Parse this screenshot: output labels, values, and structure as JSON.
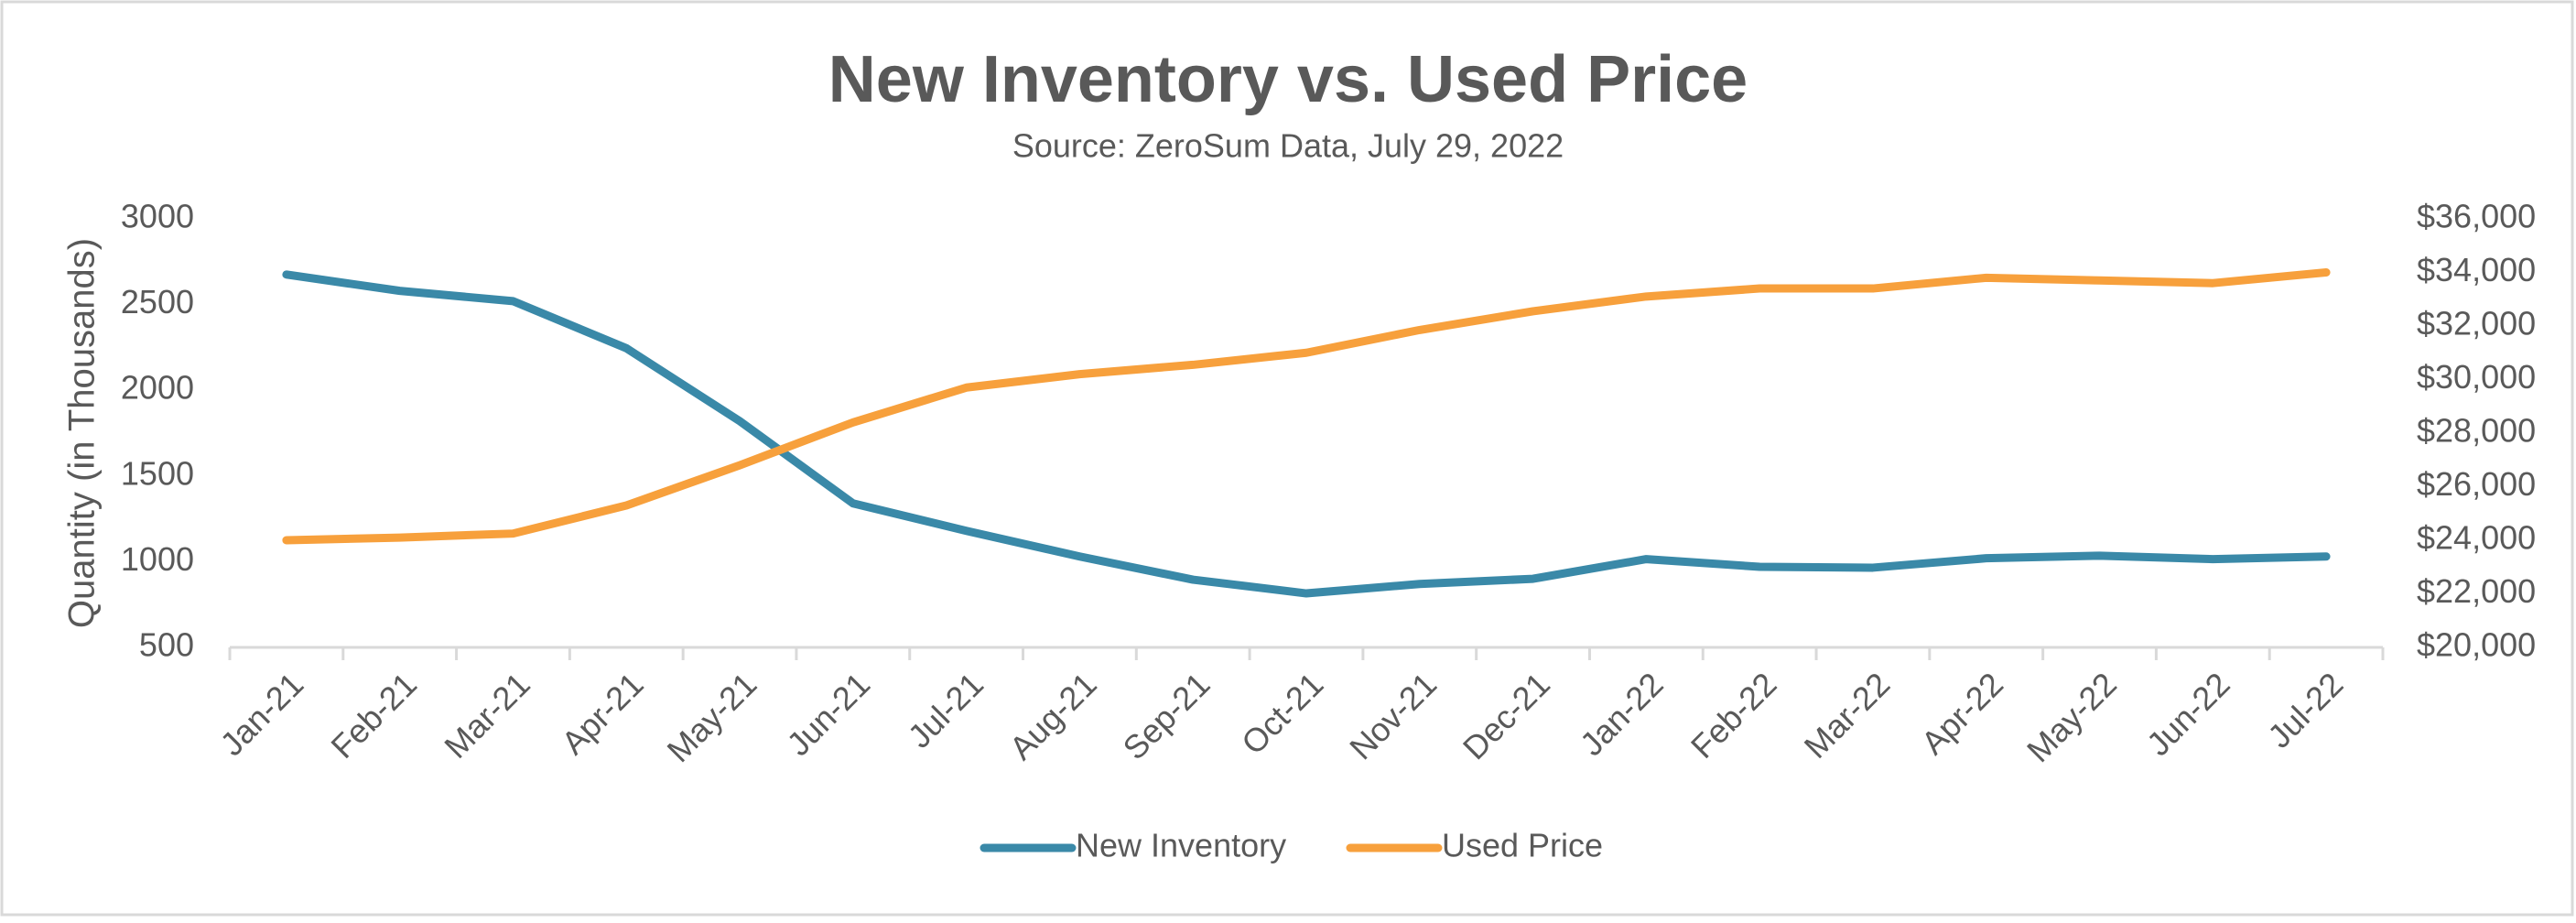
{
  "chart_data": {
    "type": "line",
    "title": "New Inventory vs. Used Price",
    "subtitle": "Source: ZeroSum Data, July 29, 2022",
    "y_label": "Quantity (in Thousands)",
    "categories": [
      "Jan-21",
      "Feb-21",
      "Mar-21",
      "Apr-21",
      "May-21",
      "Jun-21",
      "Jul-21",
      "Aug-21",
      "Sep-21",
      "Oct-21",
      "Nov-21",
      "Dec-21",
      "Jan-22",
      "Feb-22",
      "Mar-22",
      "Apr-22",
      "May-22",
      "Jun-22",
      "Jul-22"
    ],
    "series": [
      {
        "name": "New Inventory",
        "color": "#3a89a8",
        "values": [
          2675,
          2580,
          2520,
          2245,
          1820,
          1340,
          1180,
          1030,
          895,
          815,
          870,
          900,
          1015,
          970,
          965,
          1020,
          1035,
          1015,
          1030
        ]
      },
      {
        "name": "Used Price",
        "color": "#f7a03c",
        "axis": "y2",
        "values": [
          24000,
          24100,
          24250,
          25300,
          26800,
          28400,
          29700,
          30200,
          30550,
          31000,
          31850,
          32550,
          33100,
          33400,
          33400,
          33800,
          33700,
          33600,
          34000
        ]
      }
    ],
    "ylim": [
      500,
      3000
    ],
    "yticks": [
      500,
      1000,
      1500,
      2000,
      2500,
      3000
    ],
    "y2lim": [
      20000,
      36000
    ],
    "y2ticks": [
      {
        "value": 20000,
        "label": "$20,000"
      },
      {
        "value": 22000,
        "label": "$22,000"
      },
      {
        "value": 24000,
        "label": "$24,000"
      },
      {
        "value": 26000,
        "label": "$26,000"
      },
      {
        "value": 28000,
        "label": "$28,000"
      },
      {
        "value": 30000,
        "label": "$30,000"
      },
      {
        "value": 32000,
        "label": "$32,000"
      },
      {
        "value": 34000,
        "label": "$34,000"
      },
      {
        "value": 36000,
        "label": "$36,000"
      }
    ],
    "grid": false,
    "legend": "bottom"
  }
}
